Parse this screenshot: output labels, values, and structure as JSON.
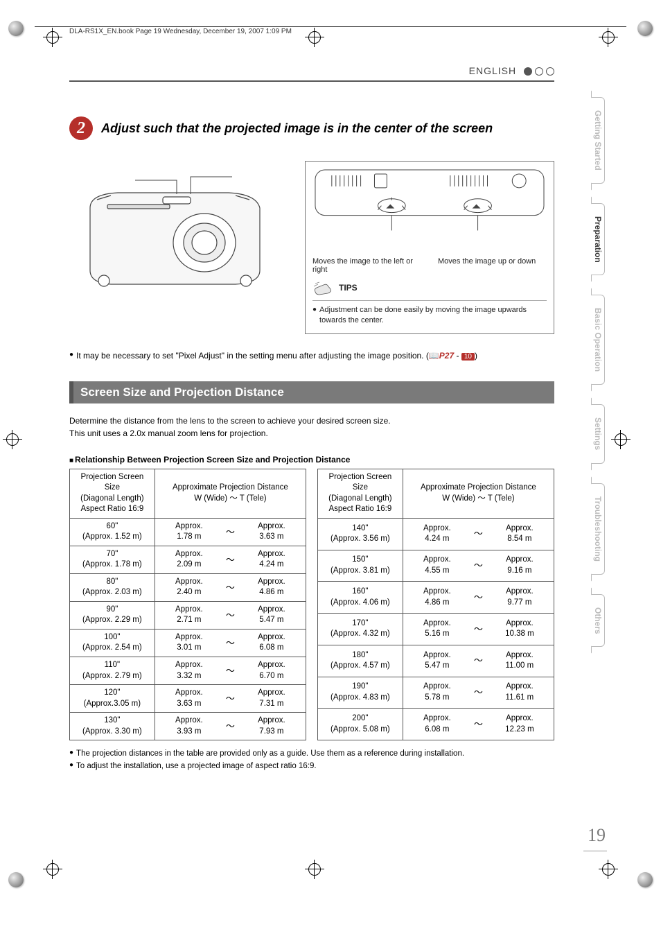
{
  "header": {
    "crop_text": "DLA-RS1X_EN.book  Page 19  Wednesday, December 19, 2007  1:09 PM",
    "language": "ENGLISH"
  },
  "step": {
    "number": "2",
    "title": "Adjust such that the projected image is in the center of the screen",
    "badge_color": "#b52f2a"
  },
  "diagram": {
    "label_left": "Moves the image to the left or right",
    "label_right": "Moves the image up or down",
    "tips_label": "TIPS",
    "tips_text": "Adjustment can be done easily by moving the image upwards towards the center."
  },
  "note": {
    "text_prefix": "It may be necessary to set \"Pixel Adjust\" in the setting menu after adjusting the image position. (",
    "book_icon": "📖",
    "page_ref": "P27",
    "sep": " - ",
    "ref_num": "10",
    "text_suffix": ")"
  },
  "section": {
    "title": "Screen Size and Projection Distance",
    "desc_line1": "Determine the distance from the lens to the screen to achieve your desired screen size.",
    "desc_line2": "This unit uses a 2.0x manual zoom lens for projection.",
    "bar_bg": "#7a7a7a"
  },
  "table": {
    "heading": "Relationship Between Projection Screen Size and Projection Distance",
    "col1_header_l1": "Projection Screen Size",
    "col1_header_l2": "(Diagonal Length)",
    "col1_header_l3": "Aspect Ratio 16:9",
    "col2_header_l1": "Approximate Projection Distance",
    "col2_header_l2": "W (Wide) ～ T (Tele)",
    "approx": "Approx.",
    "left_rows": [
      {
        "size": "60\"",
        "size_m": "(Approx. 1.52 m)",
        "wide": "1.78 m",
        "tele": "3.63 m"
      },
      {
        "size": "70\"",
        "size_m": "(Approx. 1.78 m)",
        "wide": "2.09 m",
        "tele": "4.24 m"
      },
      {
        "size": "80\"",
        "size_m": "(Approx. 2.03 m)",
        "wide": "2.40 m",
        "tele": "4.86 m"
      },
      {
        "size": "90\"",
        "size_m": "(Approx. 2.29 m)",
        "wide": "2.71 m",
        "tele": "5.47 m"
      },
      {
        "size": "100\"",
        "size_m": "(Approx. 2.54 m)",
        "wide": "3.01 m",
        "tele": "6.08 m"
      },
      {
        "size": "110\"",
        "size_m": "(Approx. 2.79 m)",
        "wide": "3.32 m",
        "tele": "6.70 m"
      },
      {
        "size": "120\"",
        "size_m": "(Approx.3.05 m)",
        "wide": "3.63 m",
        "tele": "7.31 m"
      },
      {
        "size": "130\"",
        "size_m": "(Approx. 3.30 m)",
        "wide": "3.93 m",
        "tele": "7.93 m"
      }
    ],
    "right_rows": [
      {
        "size": "140\"",
        "size_m": "(Approx. 3.56 m)",
        "wide": "4.24 m",
        "tele": "8.54 m"
      },
      {
        "size": "150\"",
        "size_m": "(Approx. 3.81 m)",
        "wide": "4.55 m",
        "tele": "9.16 m"
      },
      {
        "size": "160\"",
        "size_m": "(Approx. 4.06 m)",
        "wide": "4.86 m",
        "tele": "9.77 m"
      },
      {
        "size": "170\"",
        "size_m": "(Approx. 4.32 m)",
        "wide": "5.16 m",
        "tele": "10.38 m"
      },
      {
        "size": "180\"",
        "size_m": "(Approx. 4.57 m)",
        "wide": "5.47 m",
        "tele": "11.00 m"
      },
      {
        "size": "190\"",
        "size_m": "(Approx. 4.83 m)",
        "wide": "5.78 m",
        "tele": "11.61 m"
      },
      {
        "size": "200\"",
        "size_m": "(Approx. 5.08 m)",
        "wide": "6.08 m",
        "tele": "12.23 m"
      }
    ]
  },
  "footnotes": {
    "f1": "The projection distances in the table are provided only as a guide. Use them as a reference during installation.",
    "f2": "To adjust the installation, use a projected image of aspect ratio 16:9."
  },
  "tabs": {
    "t1": "Getting Started",
    "t2": "Preparation",
    "t3": "Basic Operation",
    "t4": "Settings",
    "t5": "Troubleshooting",
    "t6": "Others",
    "active_index": 1
  },
  "page_number": "19",
  "colors": {
    "accent": "#b52f2a",
    "gray_bar": "#7a7a7a",
    "tab_border": "#bbbbbb",
    "text": "#000000"
  }
}
